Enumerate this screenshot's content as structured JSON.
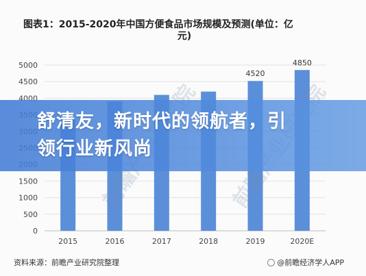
{
  "title_line1": "图表1：2015-2020年中国方便食品市场规模及预测(单位：亿",
  "title_line2": "元)",
  "banner_line1": "舒清友，新时代的领航者，引",
  "banner_line2": "领行业新风尚",
  "watermark_text": "前瞻产业研究院",
  "footer": {
    "source": "资料来源：前瞻产业研究院整理",
    "brand": "@前瞻经济学人APP"
  },
  "colors": {
    "bar": "#5b8fd9",
    "banner": "#427cd6"
  },
  "chart_data": {
    "type": "bar",
    "categories": [
      "2015",
      "2016",
      "2017",
      "2018",
      "2019",
      "2020E"
    ],
    "values": [
      3350,
      3900,
      4100,
      4200,
      4520,
      4850
    ],
    "data_labels": [
      "",
      "",
      "",
      "",
      "4520",
      "4850"
    ],
    "title": "图表1：2015-2020年中国方便食品市场规模及预测(单位：亿元)",
    "ylim": [
      0,
      5000
    ],
    "yticks": [
      "0",
      "500",
      "1000",
      "1500",
      "2000",
      "2500",
      "3000",
      "3500",
      "4000",
      "4500",
      "5000"
    ],
    "grid": true
  }
}
